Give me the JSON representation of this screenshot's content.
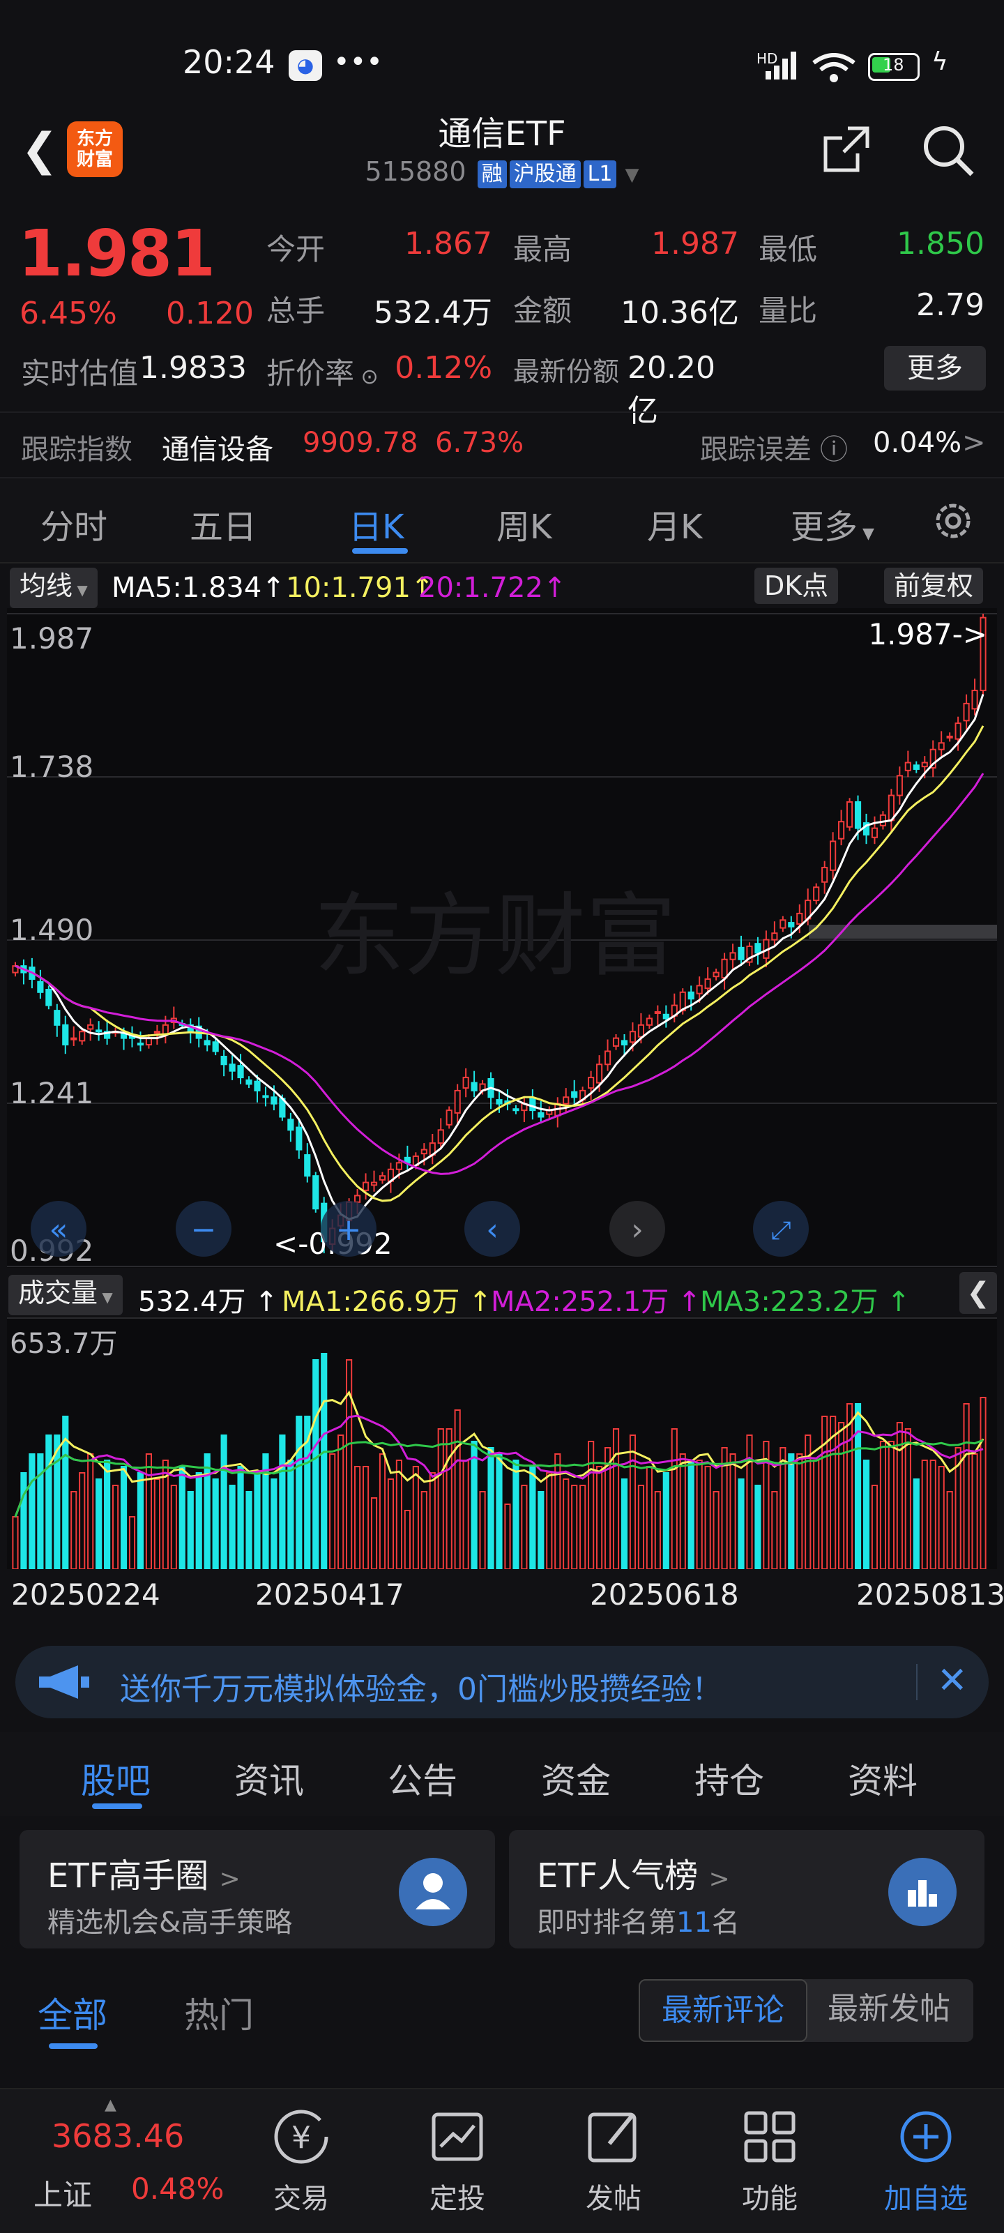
{
  "status_bar": {
    "time": "20:24",
    "network": "HD",
    "battery": "18"
  },
  "header": {
    "title": "通信ETF",
    "code": "515880",
    "tags": [
      "融",
      "沪股通",
      "L1"
    ],
    "logo_text": "东方财富"
  },
  "quote": {
    "price": "1.981",
    "change_pct": "6.45%",
    "change": "0.120",
    "fields": [
      {
        "label": "今开",
        "value": "1.867",
        "color": "#ef3b3b"
      },
      {
        "label": "最高",
        "value": "1.987",
        "color": "#ef3b3b"
      },
      {
        "label": "最低",
        "value": "1.850",
        "color": "#2fc84a"
      },
      {
        "label": "总手",
        "value": "532.4万",
        "color": "#f2f2f2"
      },
      {
        "label": "金额",
        "value": "10.36亿",
        "color": "#f2f2f2"
      },
      {
        "label": "量比",
        "value": "2.79",
        "color": "#f2f2f2"
      },
      {
        "label": "实时估值",
        "value": "1.9833",
        "color": "#f2f2f2"
      },
      {
        "label": "折价率",
        "value": "0.12%",
        "color": "#ef3b3b"
      },
      {
        "label": "最新份额",
        "value": "20.20亿",
        "color": "#f2f2f2"
      }
    ],
    "more_label": "更多"
  },
  "tracking": {
    "label": "跟踪指数",
    "index_name": "通信设备",
    "index_value": "9909.78",
    "index_pct": "6.73%",
    "error_label": "跟踪误差",
    "error_value": "0.04%"
  },
  "chart_tabs": [
    "分时",
    "五日",
    "日K",
    "周K",
    "月K",
    "更多"
  ],
  "active_chart_tab": "日K",
  "ma_legend": {
    "type_label": "均线",
    "ma5": "MA5:1.834",
    "ma10": "10:1.791",
    "ma20": "20:1.722",
    "dk_label": "DK点",
    "fq_label": "前复权"
  },
  "k_axis": {
    "labels": [
      "1.987",
      "1.738",
      "1.490",
      "1.241",
      "0.992"
    ],
    "high_marker": "1.987->",
    "low_marker": "<-0.992"
  },
  "watermark": "东方财富",
  "volume_legend": {
    "type_label": "成交量",
    "vol": "532.4万",
    "ma1": "MA1:266.9万",
    "ma2": "MA2:252.1万",
    "ma3": "MA3:223.2万",
    "max_label": "653.7万"
  },
  "dates": [
    "20250224",
    "20250417",
    "20250618",
    "20250813"
  ],
  "colors": {
    "up": "#ef3b3b",
    "down": "#1ee6e6",
    "ma5": "#ffffff",
    "ma10": "#f4f060",
    "ma20": "#d21ed8",
    "accent": "#3d8bf0"
  },
  "banner": {
    "text": "送你千万元模拟体验金，0门槛炒股攒经验！"
  },
  "content_tabs": [
    "股吧",
    "资讯",
    "公告",
    "资金",
    "持仓",
    "资料"
  ],
  "cards": [
    {
      "title": "ETF高手圈",
      "subtitle": "精选机会&高手策略"
    },
    {
      "title": "ETF人气榜",
      "subtitle_prefix": "即时排名第",
      "rank": "11",
      "subtitle_suffix": "名"
    }
  ],
  "filter": {
    "tabs": [
      "全部",
      "热门"
    ],
    "sort": [
      "最新评论",
      "最新发帖"
    ]
  },
  "bottom_nav": {
    "index_value": "3683.46",
    "index_name": "上证",
    "index_pct": "0.48%",
    "items": [
      "交易",
      "定投",
      "发帖",
      "功能",
      "加自选"
    ]
  },
  "chart_data": {
    "type": "candlestick",
    "x_range": [
      "20250224",
      "20250813"
    ],
    "ylim": [
      0.992,
      1.987
    ],
    "closes": [
      1.45,
      1.44,
      1.43,
      1.41,
      1.39,
      1.36,
      1.33,
      1.34,
      1.35,
      1.36,
      1.35,
      1.34,
      1.35,
      1.34,
      1.34,
      1.33,
      1.34,
      1.35,
      1.36,
      1.37,
      1.36,
      1.35,
      1.34,
      1.33,
      1.32,
      1.3,
      1.29,
      1.28,
      1.27,
      1.26,
      1.25,
      1.24,
      1.22,
      1.2,
      1.17,
      1.13,
      1.08,
      1.03,
      1.05,
      1.07,
      1.09,
      1.1,
      1.12,
      1.12,
      1.13,
      1.14,
      1.15,
      1.15,
      1.16,
      1.17,
      1.18,
      1.2,
      1.23,
      1.26,
      1.28,
      1.26,
      1.27,
      1.25,
      1.24,
      1.24,
      1.23,
      1.24,
      1.23,
      1.22,
      1.23,
      1.24,
      1.25,
      1.25,
      1.26,
      1.28,
      1.3,
      1.32,
      1.34,
      1.33,
      1.35,
      1.36,
      1.37,
      1.38,
      1.37,
      1.39,
      1.41,
      1.4,
      1.42,
      1.43,
      1.44,
      1.46,
      1.47,
      1.46,
      1.48,
      1.47,
      1.49,
      1.5,
      1.52,
      1.51,
      1.53,
      1.55,
      1.57,
      1.6,
      1.64,
      1.67,
      1.7,
      1.66,
      1.65,
      1.66,
      1.68,
      1.71,
      1.74,
      1.76,
      1.75,
      1.76,
      1.78,
      1.79,
      1.8,
      1.82,
      1.85,
      1.87,
      1.981
    ],
    "last_volume": "532.4万",
    "max_volume": "653.7万"
  }
}
